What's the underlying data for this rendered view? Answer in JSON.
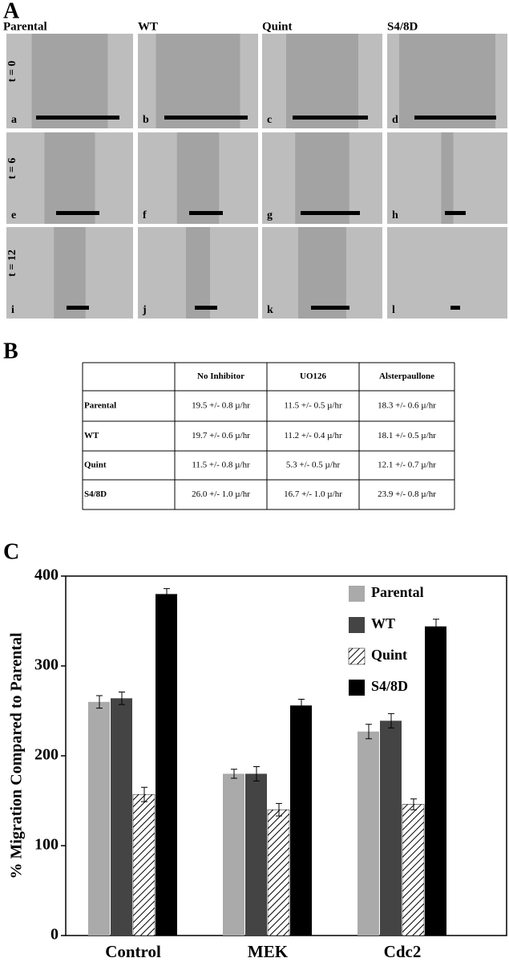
{
  "panel_a": {
    "label": "A",
    "columns": [
      "Parental",
      "WT",
      "Quint",
      "S4/8D"
    ],
    "rows": [
      "t = 0",
      "t = 6",
      "t = 12"
    ],
    "letters": [
      "a",
      "b",
      "c",
      "d",
      "e",
      "f",
      "g",
      "h",
      "i",
      "j",
      "k",
      "l"
    ]
  },
  "panel_b": {
    "label": "B",
    "header": [
      "No Inhibitor",
      "UO126",
      "Alsterpaullone"
    ],
    "rows": [
      [
        "Parental",
        "19.5 +/- 0.8 µ/hr",
        "11.5 +/- 0.5 µ/hr",
        "18.3 +/- 0.6 µ/hr"
      ],
      [
        "WT",
        "19.7 +/- 0.6 µ/hr",
        "11.2 +/- 0.4 µ/hr",
        "18.1 +/- 0.5 µ/hr"
      ],
      [
        "Quint",
        "11.5 +/- 0.8 µ/hr",
        "5.3 +/- 0.5 µ/hr",
        "12.1 +/- 0.7 µ/hr"
      ],
      [
        "S4/8D",
        "26.0 +/- 1.0 µ/hr",
        "16.7 +/- 1.0 µ/hr",
        "23.9 +/- 0.8 µ/hr"
      ]
    ]
  },
  "chart_data": {
    "type": "bar",
    "panel_label": "C",
    "ylabel": "% Migration Compared to Parental",
    "categories": [
      "Control",
      "MEK",
      "Cdc2"
    ],
    "series": [
      {
        "name": "Parental",
        "color": "#aaaaaa",
        "values": [
          260,
          180,
          227
        ],
        "errors": [
          7,
          5,
          8
        ]
      },
      {
        "name": "WT",
        "color": "#444444",
        "values": [
          264,
          180,
          239
        ],
        "errors": [
          7,
          8,
          8
        ]
      },
      {
        "name": "Quint",
        "color": "#ffffff",
        "hatch": true,
        "values": [
          157,
          140,
          146
        ],
        "errors": [
          8,
          7,
          6
        ]
      },
      {
        "name": "S4/8D",
        "color": "#000000",
        "values": [
          380,
          256,
          344
        ],
        "errors": [
          6,
          7,
          8
        ]
      }
    ],
    "ylim": [
      0,
      400
    ],
    "yticks": [
      0,
      100,
      200,
      300,
      400
    ],
    "legend": "upper right"
  }
}
